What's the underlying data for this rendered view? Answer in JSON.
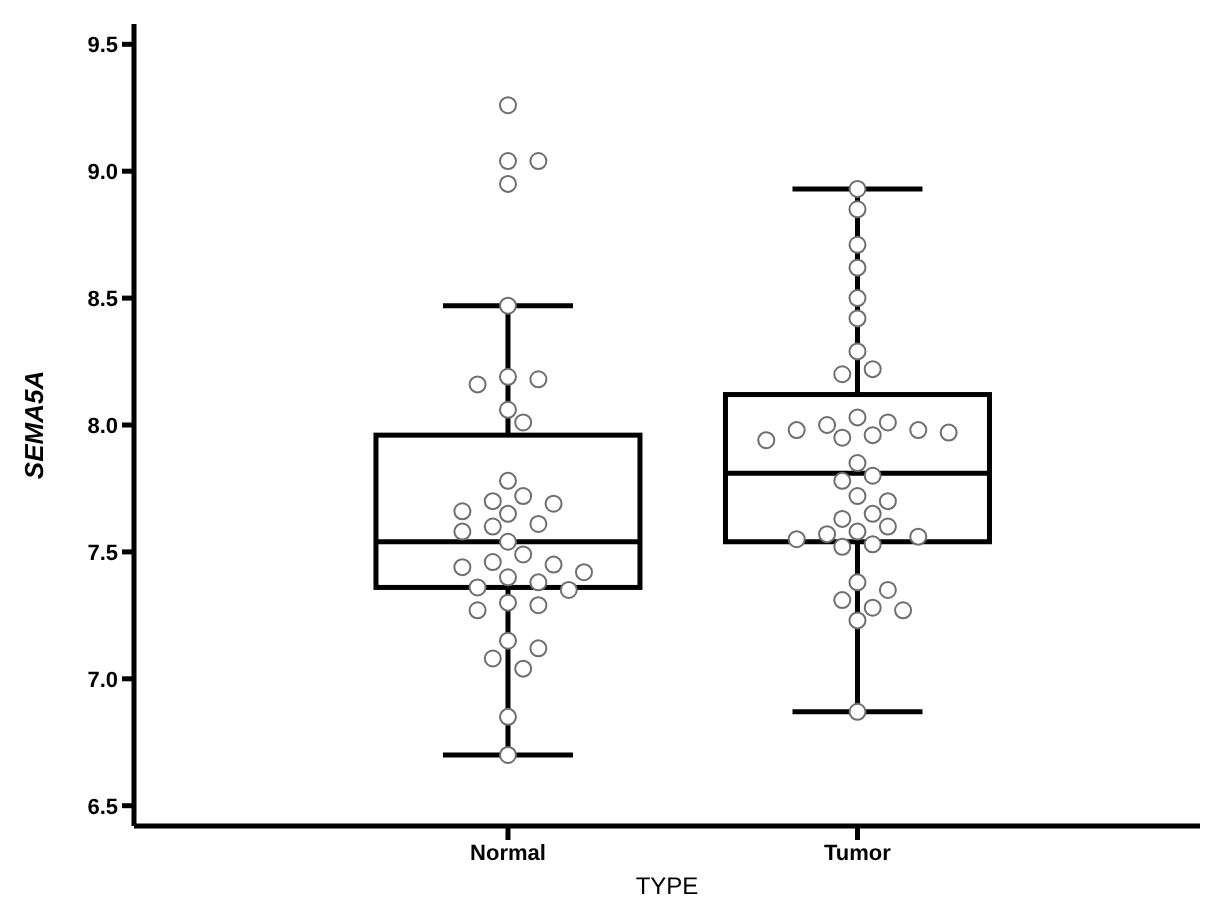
{
  "chart_data": {
    "type": "box",
    "xlabel": "TYPE",
    "ylabel": "SEMA5A",
    "categories": [
      "Normal",
      "Tumor"
    ],
    "boxes": [
      {
        "low": 6.7,
        "q1": 7.36,
        "median": 7.54,
        "q3": 7.96,
        "high": 8.47
      },
      {
        "low": 6.87,
        "q1": 7.54,
        "median": 7.81,
        "q3": 8.12,
        "high": 8.93
      }
    ],
    "series": [
      {
        "type": "scatter",
        "color": "#ffffff",
        "x": [
          "Normal",
          "Normal",
          "Normal",
          "Normal",
          "Normal",
          "Normal",
          "Normal",
          "Normal",
          "Normal",
          "Normal",
          "Normal",
          "Normal",
          "Normal",
          "Normal",
          "Normal",
          "Normal",
          "Normal",
          "Normal",
          "Normal",
          "Normal",
          "Normal",
          "Normal",
          "Normal",
          "Normal",
          "Normal",
          "Normal",
          "Normal",
          "Normal",
          "Normal",
          "Normal",
          "Normal",
          "Normal",
          "Normal",
          "Normal",
          "Normal",
          "Normal",
          "Normal",
          "Normal",
          "Tumor",
          "Tumor",
          "Tumor",
          "Tumor",
          "Tumor",
          "Tumor",
          "Tumor",
          "Tumor",
          "Tumor",
          "Tumor",
          "Tumor",
          "Tumor",
          "Tumor",
          "Tumor",
          "Tumor",
          "Tumor",
          "Tumor",
          "Tumor",
          "Tumor",
          "Tumor",
          "Tumor",
          "Tumor",
          "Tumor",
          "Tumor",
          "Tumor",
          "Tumor",
          "Tumor",
          "Tumor",
          "Tumor",
          "Tumor",
          "Tumor",
          "Tumor",
          "Tumor",
          "Tumor",
          "Tumor",
          "Tumor",
          "Tumor",
          "Tumor",
          "Tumor"
        ],
        "values": [
          9.26,
          9.04,
          9.04,
          8.95,
          8.47,
          8.19,
          8.18,
          8.16,
          8.06,
          8.01,
          7.78,
          7.72,
          7.7,
          7.69,
          7.66,
          7.65,
          7.61,
          7.6,
          7.58,
          7.54,
          7.49,
          7.46,
          7.45,
          7.44,
          7.42,
          7.4,
          7.38,
          7.36,
          7.35,
          7.3,
          7.29,
          7.27,
          7.15,
          7.12,
          7.08,
          7.04,
          6.85,
          6.7,
          8.93,
          8.85,
          8.71,
          8.62,
          8.5,
          8.42,
          8.29,
          8.22,
          8.2,
          8.03,
          8.01,
          8.0,
          7.98,
          7.98,
          7.97,
          7.96,
          7.95,
          7.94,
          7.85,
          7.8,
          7.78,
          7.72,
          7.7,
          7.65,
          7.63,
          7.6,
          7.58,
          7.57,
          7.56,
          7.55,
          7.53,
          7.52,
          7.38,
          7.35,
          7.31,
          7.28,
          7.27,
          7.23,
          6.87
        ]
      }
    ],
    "marker": "circle",
    "ylim": [
      6.42,
      9.58
    ],
    "yticks": [
      6.5,
      {
        "value": 7,
        "label": "7.0"
      },
      7.5,
      {
        "value": 8,
        "label": "8.0"
      },
      8.5,
      {
        "value": 9,
        "label": "9.0"
      },
      9.5
    ]
  }
}
